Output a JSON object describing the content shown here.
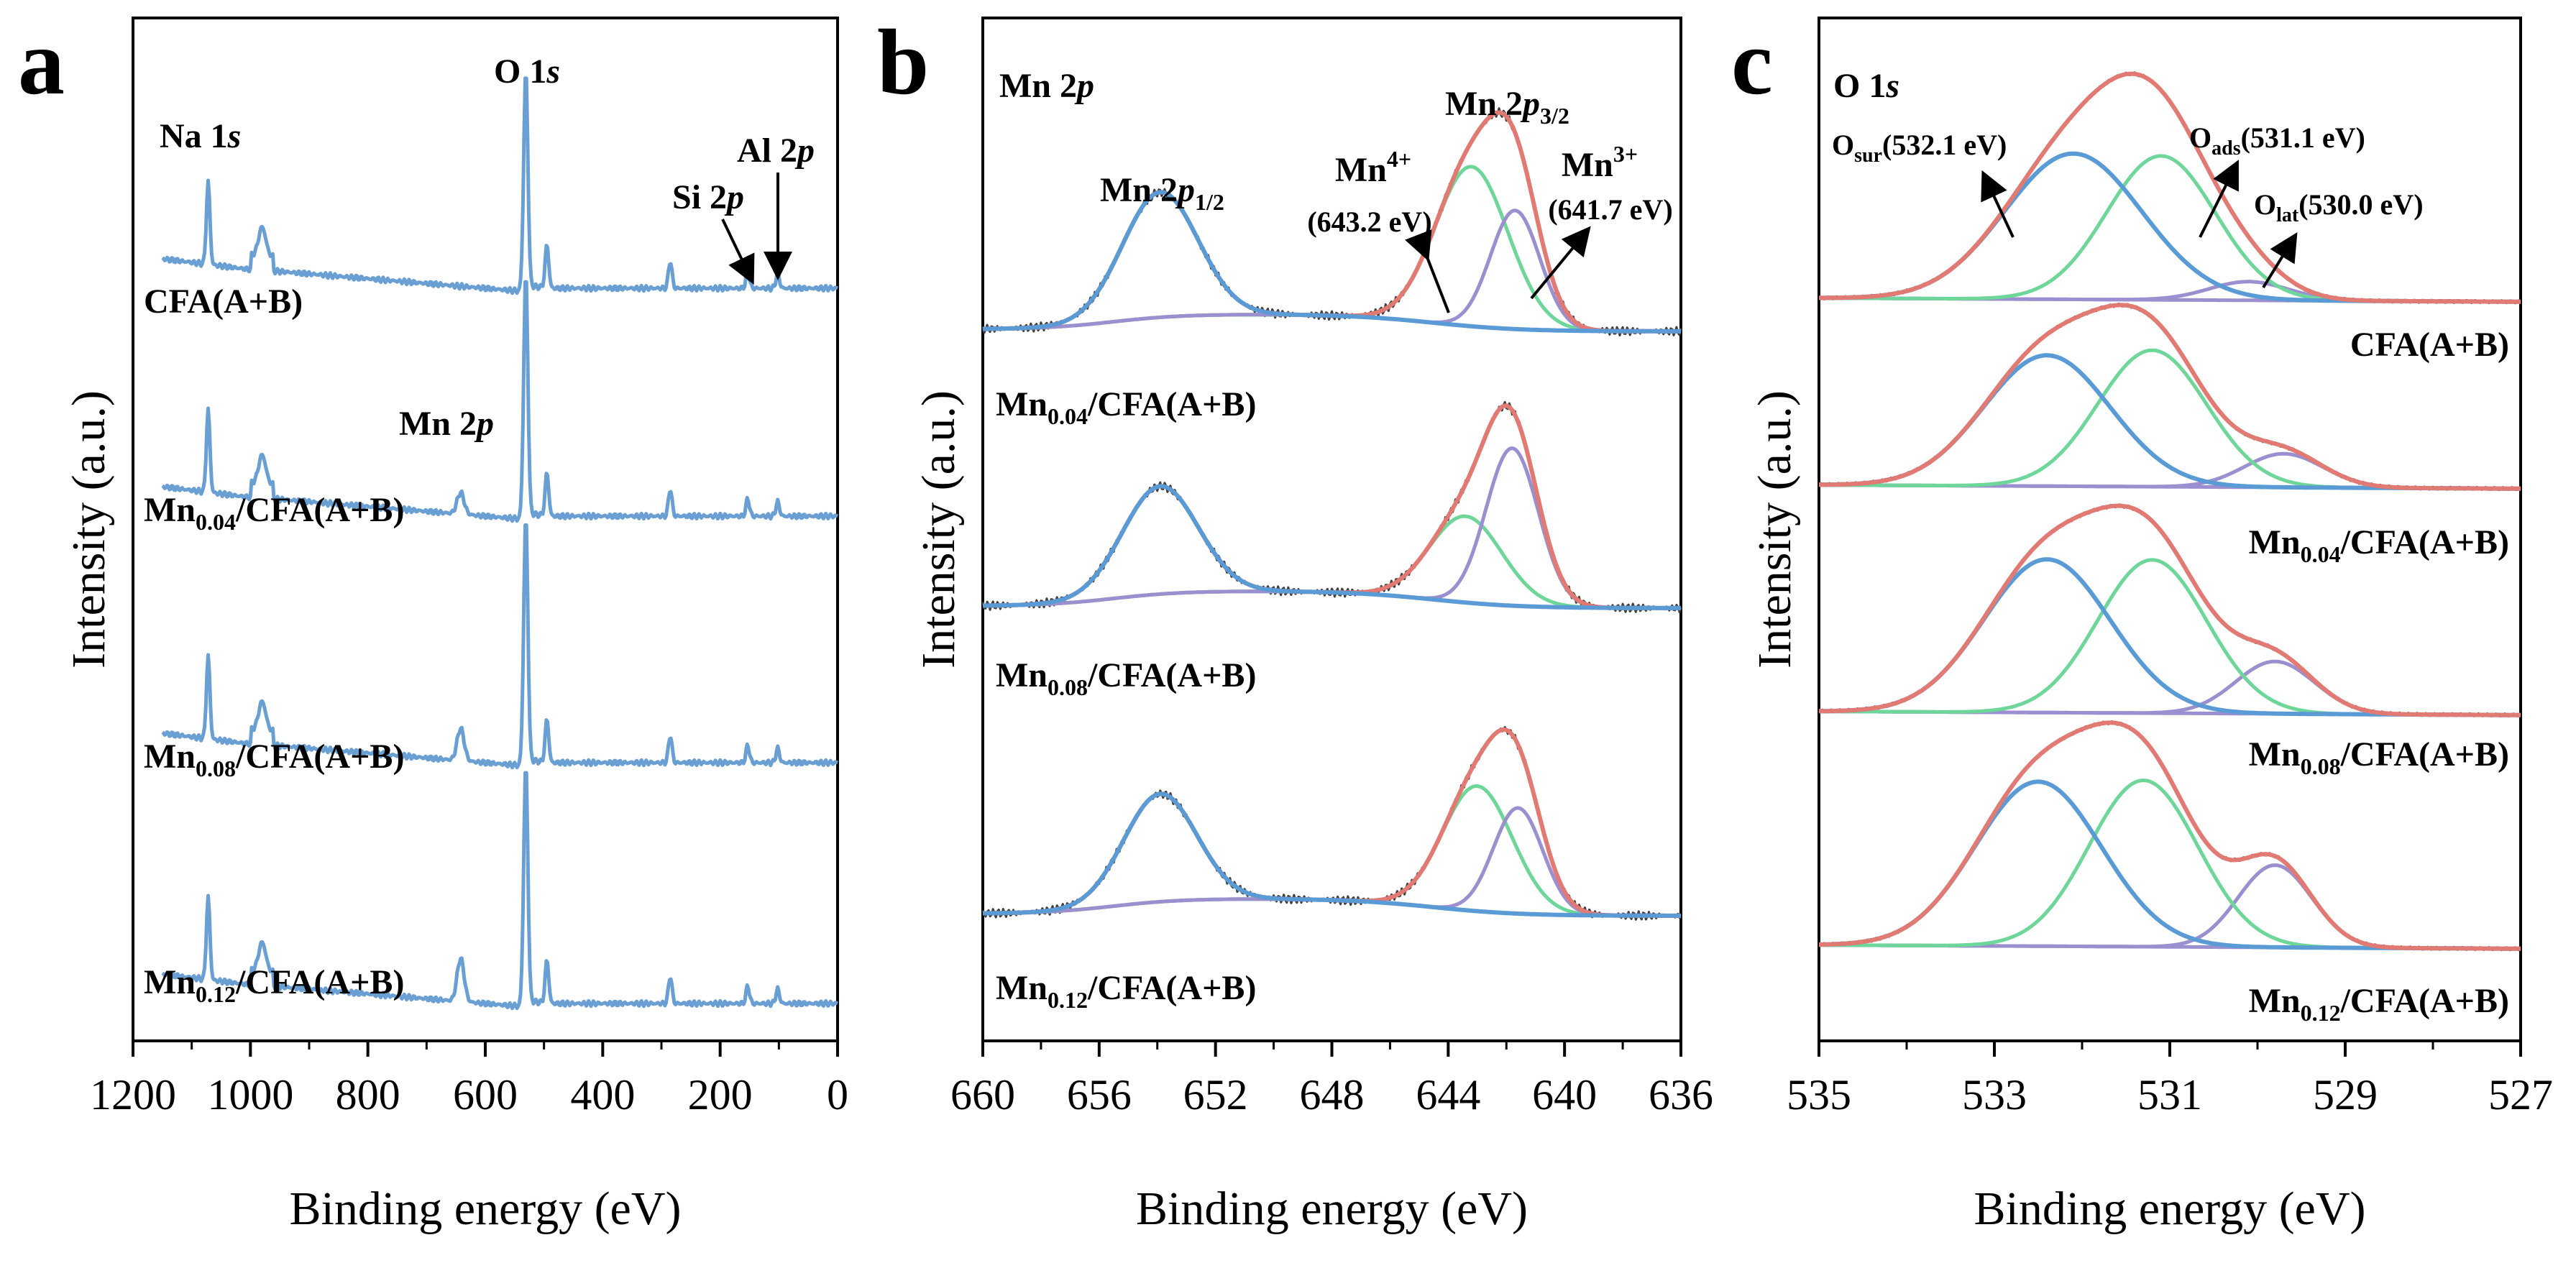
{
  "figure": {
    "panels": [
      {
        "id": "a",
        "letter": "a",
        "xlabel": "Binding energy (eV)",
        "ylabel": "Intensity (a.u.)"
      },
      {
        "id": "b",
        "letter": "b",
        "xlabel": "Binding energy (eV)",
        "ylabel": "Intensity (a.u.)"
      },
      {
        "id": "c",
        "letter": "c",
        "xlabel": "Binding energy (eV)",
        "ylabel": "Intensity (a.u.)"
      }
    ]
  },
  "colors": {
    "survey": "#6a9fd4",
    "envelope": "#e07a72",
    "blue_peak": "#5b9bd5",
    "green_peak": "#6fd69a",
    "purple_peak": "#9c8fd0",
    "raw": "#404040",
    "axis": "#000000"
  },
  "chart_data": [
    {
      "type": "line",
      "panel": "a",
      "title": "",
      "xlabel": "Binding energy (eV)",
      "ylabel": "Intensity (a.u.)",
      "xlim": [
        1200,
        0
      ],
      "x_ticks": [
        "1200",
        "1000",
        "800",
        "600",
        "400",
        "200",
        "0"
      ],
      "x_tick_values": [
        1200,
        1000,
        800,
        600,
        400,
        200,
        0
      ],
      "series": [
        {
          "name": "CFA(A+B)",
          "mn_level": 0,
          "peaks_ev": [
            1072,
            980,
            531,
            495,
            285,
            153,
            102
          ]
        },
        {
          "name": "Mn0.04/CFA(A+B)",
          "mn_level": 1,
          "peaks_ev": [
            1072,
            980,
            642,
            531,
            495,
            285,
            153,
            102
          ]
        },
        {
          "name": "Mn0.08/CFA(A+B)",
          "mn_level": 2,
          "peaks_ev": [
            1072,
            980,
            642,
            531,
            495,
            285,
            153,
            102
          ]
        },
        {
          "name": "Mn0.12/CFA(A+B)",
          "mn_level": 3,
          "peaks_ev": [
            1072,
            980,
            642,
            531,
            495,
            285,
            153,
            102
          ]
        }
      ],
      "annotations": {
        "na1s": {
          "main": "Na 1",
          "ital": "s",
          "x_ev": 1072
        },
        "o1s": {
          "main": "O 1",
          "ital": "s",
          "x_ev": 531
        },
        "si2p": {
          "main": "Si 2",
          "ital": "p",
          "x_ev": 153
        },
        "al2p": {
          "main": "Al 2",
          "ital": "p",
          "x_ev": 102
        },
        "mn2p": {
          "main": "Mn 2",
          "ital": "p",
          "x_ev": 642
        }
      },
      "sample_labels": [
        {
          "pre": "CFA(A+B)",
          "sub": "",
          "post": ""
        },
        {
          "pre": "Mn",
          "sub": "0.04",
          "post": "/CFA(A+B)"
        },
        {
          "pre": "Mn",
          "sub": "0.08",
          "post": "/CFA(A+B)"
        },
        {
          "pre": "Mn",
          "sub": "0.12",
          "post": "/CFA(A+B)"
        }
      ]
    },
    {
      "type": "line",
      "panel": "b",
      "title": "Mn 2p",
      "xlabel": "Binding energy (eV)",
      "ylabel": "Intensity (a.u.)",
      "xlim": [
        660,
        636
      ],
      "x_ticks": [
        "660",
        "656",
        "652",
        "648",
        "644",
        "640",
        "636"
      ],
      "x_tick_values": [
        660,
        656,
        652,
        648,
        644,
        640,
        636
      ],
      "components": [
        "Mn 2p1/2",
        "Mn4+ (643.2 eV)",
        "Mn3+ (641.7 eV)",
        "envelope"
      ],
      "series": [
        {
          "name": "Mn0.04/CFA(A+B)",
          "p12": {
            "center": 653.9,
            "height": 0.58,
            "sigma": 1.3
          },
          "mn4": {
            "center": 643.2,
            "height": 0.74,
            "sigma": 1.25
          },
          "mn3": {
            "center": 641.7,
            "height": 0.55,
            "sigma": 0.85
          }
        },
        {
          "name": "Mn0.08/CFA(A+B)",
          "p12": {
            "center": 653.9,
            "height": 0.5,
            "sigma": 1.3
          },
          "mn4": {
            "center": 643.4,
            "height": 0.4,
            "sigma": 1.25
          },
          "mn3": {
            "center": 641.8,
            "height": 0.73,
            "sigma": 0.9
          }
        },
        {
          "name": "Mn0.12/CFA(A+B)",
          "p12": {
            "center": 653.9,
            "height": 0.5,
            "sigma": 1.25
          },
          "mn4": {
            "center": 643.0,
            "height": 0.58,
            "sigma": 1.2
          },
          "mn3": {
            "center": 641.6,
            "height": 0.49,
            "sigma": 0.85
          }
        }
      ],
      "annotations": {
        "panel_title": {
          "main": "Mn 2",
          "ital": "p"
        },
        "p32": {
          "main": "Mn 2",
          "ital": "p",
          "sub": "3/2"
        },
        "p12": {
          "main": "Mn 2",
          "ital": "p",
          "sub": "1/2"
        },
        "mn4": {
          "main": "Mn",
          "sup": "4+",
          "value": "(643.2 eV)"
        },
        "mn3": {
          "main": "Mn",
          "sup": "3+",
          "value": "(641.7 eV)"
        }
      },
      "sample_labels": [
        {
          "pre": "Mn",
          "sub": "0.04",
          "post": "/CFA(A+B)"
        },
        {
          "pre": "Mn",
          "sub": "0.08",
          "post": "/CFA(A+B)"
        },
        {
          "pre": "Mn",
          "sub": "0.12",
          "post": "/CFA(A+B)"
        }
      ]
    },
    {
      "type": "line",
      "panel": "c",
      "title": "O 1s",
      "xlabel": "Binding energy (eV)",
      "ylabel": "Intensity (a.u.)",
      "xlim": [
        535,
        527
      ],
      "x_ticks": [
        "535",
        "533",
        "531",
        "529",
        "527"
      ],
      "x_tick_values": [
        535,
        533,
        531,
        529,
        527
      ],
      "components": [
        "O_sur (532.1 eV)",
        "O_ads (531.1 eV)",
        "O_lat (530.0 eV)",
        "envelope"
      ],
      "series": [
        {
          "name": "CFA(A+B)",
          "sur": {
            "center": 532.1,
            "height": 0.78,
            "sigma": 0.78
          },
          "ads": {
            "center": 531.1,
            "height": 0.77,
            "sigma": 0.62
          },
          "lat": {
            "center": 530.1,
            "height": 0.1,
            "sigma": 0.45
          }
        },
        {
          "name": "Mn0.04/CFA(A+B)",
          "sur": {
            "center": 532.4,
            "height": 0.7,
            "sigma": 0.72
          },
          "ads": {
            "center": 531.2,
            "height": 0.73,
            "sigma": 0.62
          },
          "lat": {
            "center": 529.7,
            "height": 0.18,
            "sigma": 0.45
          }
        },
        {
          "name": "Mn0.08/CFA(A+B)",
          "sur": {
            "center": 532.4,
            "height": 0.82,
            "sigma": 0.72
          },
          "ads": {
            "center": 531.2,
            "height": 0.82,
            "sigma": 0.62
          },
          "lat": {
            "center": 529.8,
            "height": 0.28,
            "sigma": 0.45
          }
        },
        {
          "name": "Mn0.12/CFA(A+B)",
          "sur": {
            "center": 532.5,
            "height": 0.88,
            "sigma": 0.72
          },
          "ads": {
            "center": 531.3,
            "height": 0.89,
            "sigma": 0.62
          },
          "lat": {
            "center": 529.8,
            "height": 0.44,
            "sigma": 0.42
          }
        }
      ],
      "annotations": {
        "panel_title": {
          "main": "O 1",
          "ital": "s"
        },
        "osur": {
          "main": "O",
          "sub": "sur",
          "value": "(532.1 eV)"
        },
        "oads": {
          "main": "O",
          "sub": "ads",
          "value": "(531.1 eV)"
        },
        "olat": {
          "main": "O",
          "sub": "lat",
          "value": "(530.0 eV)"
        }
      },
      "sample_labels": [
        {
          "pre": "CFA(A+B)",
          "sub": "",
          "post": ""
        },
        {
          "pre": "Mn",
          "sub": "0.04",
          "post": "/CFA(A+B)"
        },
        {
          "pre": "Mn",
          "sub": "0.08",
          "post": "/CFA(A+B)"
        },
        {
          "pre": "Mn",
          "sub": "0.12",
          "post": "/CFA(A+B)"
        }
      ]
    }
  ]
}
